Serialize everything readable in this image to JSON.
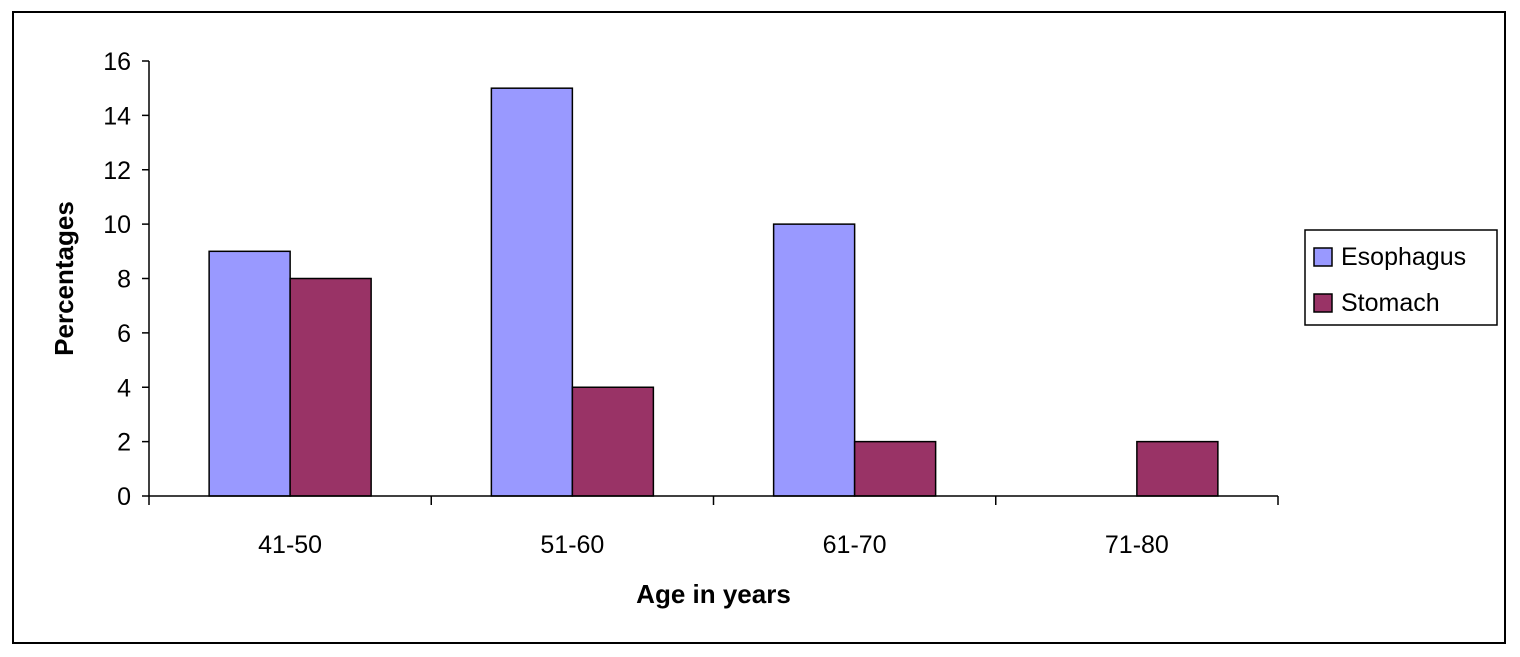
{
  "chart_data": {
    "type": "bar",
    "categories": [
      "41-50",
      "51-60",
      "61-70",
      "71-80"
    ],
    "series": [
      {
        "name": "Esophagus",
        "values": [
          9,
          15,
          10,
          0
        ],
        "color": "#9999ff"
      },
      {
        "name": "Stomach",
        "values": [
          8,
          4,
          2,
          2
        ],
        "color": "#993366"
      }
    ],
    "title": "",
    "xlabel": "Age in years",
    "ylabel": "Percentages",
    "ylim": [
      0,
      16
    ],
    "yticks": [
      "0",
      "2",
      "4",
      "6",
      "8",
      "10",
      "12",
      "14",
      "16"
    ],
    "grid": false,
    "legend_position": "right"
  }
}
